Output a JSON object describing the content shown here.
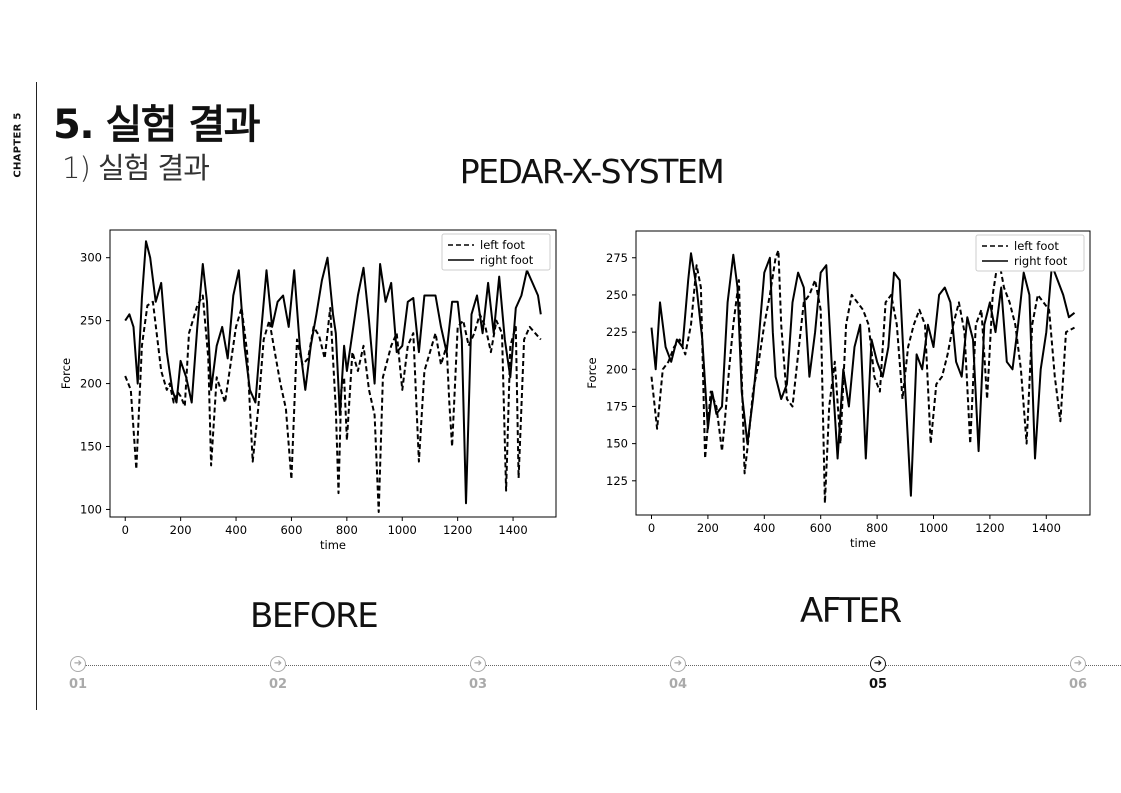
{
  "side_label": "CHAPTER 5",
  "title": "5. 실험 결과",
  "subtitle": "1) 실험 결과",
  "system_title": "PEDAR-X-SYSTEM",
  "captions": {
    "before": "BEFORE",
    "after": "AFTER"
  },
  "nav": {
    "steps": [
      {
        "label": "01",
        "active": false
      },
      {
        "label": "02",
        "active": false
      },
      {
        "label": "03",
        "active": false
      },
      {
        "label": "04",
        "active": false
      },
      {
        "label": "05",
        "active": true
      },
      {
        "label": "06",
        "active": false
      }
    ],
    "icon": "arrow-right-circle-icon"
  },
  "chart_data": [
    {
      "type": "line",
      "xlabel": "time",
      "ylabel": "Force",
      "xlim": [
        -55,
        1555
      ],
      "ylim": [
        94,
        322
      ],
      "xticks": [
        0,
        200,
        400,
        600,
        800,
        1000,
        1200,
        1400
      ],
      "yticks": [
        100,
        150,
        200,
        250,
        300
      ],
      "legend": "top-right",
      "series": [
        {
          "name": "left foot",
          "style": "dashed",
          "x": [
            0,
            20,
            40,
            60,
            80,
            100,
            130,
            150,
            160,
            175,
            190,
            200,
            215,
            230,
            260,
            280,
            300,
            310,
            330,
            360,
            380,
            400,
            420,
            440,
            460,
            480,
            500,
            520,
            540,
            560,
            580,
            600,
            620,
            640,
            660,
            680,
            700,
            720,
            740,
            760,
            770,
            780,
            790,
            800,
            820,
            840,
            860,
            880,
            900,
            915,
            930,
            960,
            980,
            1000,
            1020,
            1040,
            1060,
            1080,
            1100,
            1120,
            1140,
            1160,
            1170,
            1180,
            1200,
            1220,
            1240,
            1260,
            1280,
            1300,
            1320,
            1340,
            1360,
            1375,
            1390,
            1410,
            1420,
            1440,
            1460,
            1480,
            1500
          ],
          "y": [
            206,
            195,
            132,
            230,
            262,
            265,
            210,
            195,
            200,
            185,
            193,
            190,
            182,
            240,
            262,
            270,
            220,
            135,
            205,
            185,
            215,
            245,
            260,
            225,
            138,
            180,
            235,
            250,
            225,
            200,
            180,
            124,
            235,
            215,
            220,
            245,
            238,
            220,
            260,
            180,
            113,
            195,
            205,
            155,
            225,
            210,
            230,
            195,
            175,
            98,
            205,
            230,
            240,
            195,
            230,
            240,
            138,
            210,
            225,
            240,
            215,
            230,
            185,
            150,
            245,
            250,
            230,
            240,
            255,
            245,
            225,
            250,
            240,
            115,
            230,
            245,
            125,
            235,
            245,
            240,
            235
          ]
        },
        {
          "name": "right foot",
          "style": "solid",
          "x": [
            0,
            15,
            30,
            45,
            60,
            75,
            90,
            110,
            130,
            150,
            170,
            185,
            200,
            220,
            240,
            260,
            280,
            295,
            310,
            330,
            350,
            370,
            390,
            410,
            430,
            450,
            470,
            490,
            510,
            530,
            550,
            570,
            590,
            610,
            630,
            650,
            670,
            690,
            710,
            730,
            750,
            760,
            775,
            790,
            800,
            820,
            840,
            860,
            880,
            900,
            920,
            940,
            960,
            980,
            1000,
            1020,
            1040,
            1060,
            1080,
            1100,
            1120,
            1140,
            1160,
            1180,
            1200,
            1215,
            1230,
            1250,
            1270,
            1290,
            1310,
            1330,
            1350,
            1370,
            1390,
            1410,
            1430,
            1450,
            1470,
            1490,
            1500
          ],
          "y": [
            250,
            255,
            245,
            200,
            268,
            313,
            300,
            265,
            280,
            225,
            195,
            185,
            218,
            205,
            185,
            245,
            295,
            265,
            195,
            230,
            245,
            220,
            270,
            290,
            230,
            195,
            185,
            240,
            290,
            245,
            265,
            270,
            245,
            290,
            230,
            195,
            230,
            255,
            282,
            300,
            255,
            240,
            175,
            230,
            210,
            240,
            270,
            292,
            250,
            200,
            295,
            265,
            280,
            225,
            230,
            265,
            268,
            225,
            270,
            270,
            270,
            245,
            225,
            265,
            265,
            235,
            105,
            255,
            270,
            240,
            280,
            240,
            285,
            235,
            205,
            260,
            270,
            290,
            280,
            270,
            255
          ]
        }
      ]
    },
    {
      "type": "line",
      "xlabel": "time",
      "ylabel": "Force",
      "xlim": [
        -55,
        1555
      ],
      "ylim": [
        102,
        293
      ],
      "xticks": [
        0,
        200,
        400,
        600,
        800,
        1000,
        1200,
        1400
      ],
      "yticks": [
        125,
        150,
        175,
        200,
        225,
        250,
        275
      ],
      "legend": "top-right",
      "series": [
        {
          "name": "left foot",
          "style": "dashed",
          "x": [
            0,
            20,
            40,
            60,
            80,
            100,
            120,
            140,
            160,
            175,
            190,
            210,
            230,
            250,
            260,
            275,
            290,
            310,
            330,
            345,
            360,
            380,
            400,
            420,
            440,
            450,
            460,
            480,
            500,
            520,
            540,
            560,
            580,
            600,
            615,
            630,
            650,
            670,
            690,
            710,
            730,
            750,
            770,
            790,
            810,
            830,
            850,
            870,
            890,
            910,
            930,
            950,
            970,
            990,
            1010,
            1030,
            1050,
            1070,
            1090,
            1110,
            1130,
            1150,
            1170,
            1190,
            1210,
            1230,
            1250,
            1270,
            1290,
            1310,
            1330,
            1350,
            1370,
            1390,
            1410,
            1430,
            1450,
            1470,
            1500
          ],
          "y": [
            195,
            160,
            200,
            205,
            215,
            220,
            210,
            230,
            270,
            255,
            140,
            185,
            175,
            145,
            165,
            200,
            230,
            260,
            130,
            155,
            185,
            205,
            230,
            250,
            275,
            280,
            230,
            180,
            175,
            210,
            245,
            250,
            260,
            240,
            110,
            175,
            205,
            150,
            230,
            250,
            245,
            240,
            230,
            195,
            185,
            245,
            250,
            230,
            180,
            215,
            230,
            240,
            230,
            150,
            190,
            195,
            210,
            230,
            245,
            225,
            150,
            230,
            240,
            180,
            250,
            275,
            255,
            245,
            230,
            200,
            150,
            230,
            250,
            245,
            240,
            195,
            165,
            225,
            228
          ]
        },
        {
          "name": "right foot",
          "style": "solid",
          "x": [
            0,
            15,
            30,
            50,
            70,
            90,
            110,
            130,
            140,
            160,
            180,
            200,
            215,
            230,
            250,
            270,
            290,
            305,
            320,
            340,
            360,
            380,
            400,
            420,
            430,
            440,
            460,
            480,
            500,
            520,
            540,
            560,
            580,
            600,
            620,
            640,
            660,
            680,
            700,
            720,
            740,
            760,
            780,
            800,
            820,
            840,
            860,
            880,
            900,
            920,
            940,
            960,
            980,
            1000,
            1020,
            1040,
            1060,
            1080,
            1100,
            1120,
            1140,
            1160,
            1180,
            1200,
            1220,
            1240,
            1260,
            1280,
            1300,
            1320,
            1340,
            1360,
            1380,
            1400,
            1420,
            1440,
            1460,
            1480,
            1500
          ],
          "y": [
            228,
            200,
            245,
            215,
            205,
            220,
            215,
            260,
            278,
            255,
            220,
            160,
            185,
            170,
            175,
            245,
            277,
            255,
            185,
            150,
            180,
            220,
            265,
            275,
            225,
            195,
            180,
            190,
            245,
            265,
            255,
            195,
            225,
            265,
            270,
            200,
            140,
            200,
            175,
            215,
            230,
            140,
            220,
            205,
            195,
            215,
            265,
            260,
            185,
            115,
            210,
            200,
            230,
            215,
            250,
            255,
            245,
            205,
            195,
            235,
            220,
            145,
            230,
            245,
            225,
            255,
            205,
            200,
            230,
            265,
            250,
            140,
            200,
            225,
            270,
            260,
            250,
            235,
            238
          ]
        }
      ]
    }
  ]
}
